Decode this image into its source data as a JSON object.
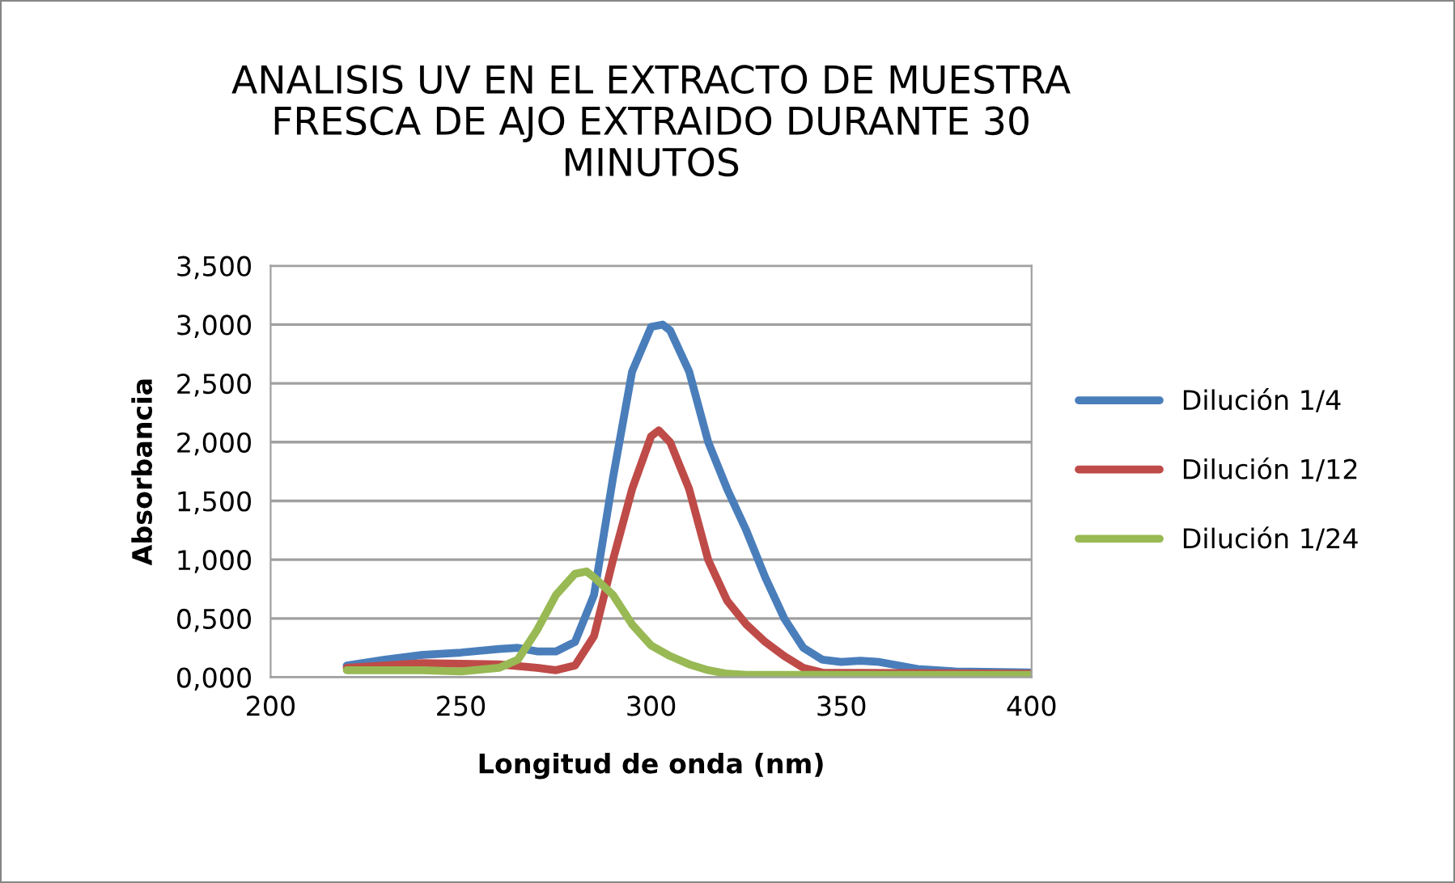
{
  "chart_data": {
    "type": "line",
    "title": "ANALISIS UV EN EL EXTRACTO DE MUESTRA\nFRESCA DE AJO EXTRAIDO DURANTE 30\nMINUTOS",
    "xlabel": "Longitud de onda (nm)",
    "ylabel": "Absorbancia",
    "xlim": [
      200,
      400
    ],
    "xticks": [
      200,
      250,
      300,
      350,
      400
    ],
    "ylim": [
      0,
      3.5
    ],
    "yticks": [
      {
        "value": 0,
        "label": "0,000"
      },
      {
        "value": 0.5,
        "label": "0,500"
      },
      {
        "value": 1,
        "label": "1,000"
      },
      {
        "value": 1.5,
        "label": "1,500"
      },
      {
        "value": 2,
        "label": "2,000"
      },
      {
        "value": 2.5,
        "label": "2,500"
      },
      {
        "value": 3,
        "label": "3,000"
      },
      {
        "value": 3.5,
        "label": "3,500"
      }
    ],
    "grid": "y",
    "legend": "right",
    "marker": "none",
    "line_style": "solid",
    "series": [
      {
        "name": "Dilución 1/4",
        "color": "#4a7ebb",
        "x": [
          220,
          230,
          240,
          250,
          260,
          265,
          270,
          275,
          280,
          285,
          290,
          295,
          300,
          303,
          305,
          310,
          315,
          320,
          325,
          330,
          335,
          340,
          345,
          350,
          355,
          360,
          365,
          370,
          380,
          400
        ],
        "values": [
          0.1,
          0.15,
          0.19,
          0.21,
          0.24,
          0.25,
          0.22,
          0.22,
          0.3,
          0.7,
          1.7,
          2.6,
          2.98,
          3.0,
          2.95,
          2.6,
          2.0,
          1.6,
          1.25,
          0.85,
          0.5,
          0.25,
          0.15,
          0.13,
          0.14,
          0.13,
          0.1,
          0.07,
          0.05,
          0.04
        ]
      },
      {
        "name": "Dilución 1/12",
        "color": "#be4b48",
        "x": [
          220,
          240,
          260,
          270,
          275,
          280,
          285,
          290,
          295,
          300,
          302,
          305,
          310,
          315,
          320,
          325,
          330,
          335,
          340,
          345,
          400
        ],
        "values": [
          0.08,
          0.12,
          0.11,
          0.08,
          0.06,
          0.1,
          0.35,
          1.0,
          1.6,
          2.05,
          2.1,
          2.0,
          1.6,
          1.0,
          0.65,
          0.45,
          0.3,
          0.18,
          0.08,
          0.04,
          0.03
        ]
      },
      {
        "name": "Dilución 1/24",
        "color": "#98b954",
        "x": [
          220,
          240,
          250,
          260,
          265,
          270,
          275,
          280,
          283,
          285,
          290,
          295,
          300,
          305,
          310,
          315,
          320,
          325,
          400
        ],
        "values": [
          0.06,
          0.06,
          0.05,
          0.08,
          0.15,
          0.4,
          0.7,
          0.88,
          0.9,
          0.85,
          0.7,
          0.45,
          0.27,
          0.18,
          0.11,
          0.06,
          0.03,
          0.02,
          0.02
        ]
      }
    ]
  }
}
